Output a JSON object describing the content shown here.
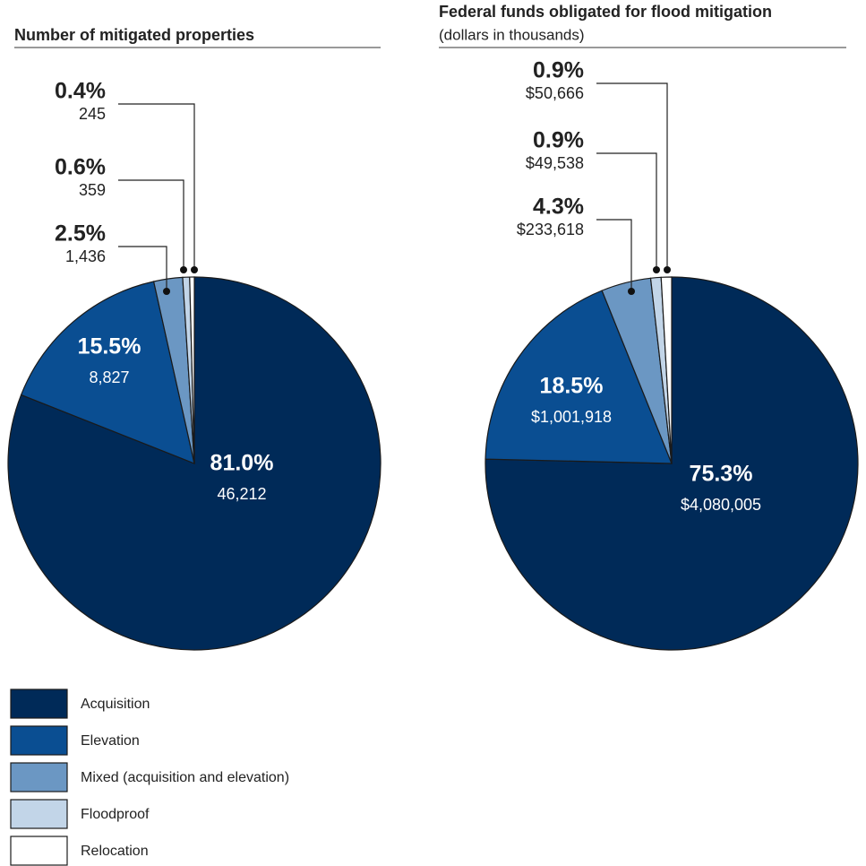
{
  "chart_data": [
    {
      "type": "pie",
      "title": "Number of mitigated properties",
      "categories": [
        "Acquisition",
        "Elevation",
        "Mixed (acquisition and elevation)",
        "Floodproof",
        "Relocation"
      ],
      "colors": [
        "#002a58",
        "#0a4e92",
        "#6b97c3",
        "#c2d5e8",
        "#ffffff"
      ],
      "values": [
        81.0,
        15.5,
        2.5,
        0.6,
        0.4
      ],
      "value_labels": [
        "81.0%",
        "15.5%",
        "2.5%",
        "0.6%",
        "0.4%"
      ],
      "amounts": [
        46212,
        8827,
        1436,
        359,
        245
      ],
      "amount_labels": [
        "46,212",
        "8,827",
        "1,436",
        "359",
        "245"
      ],
      "legend": true
    },
    {
      "type": "pie",
      "title": "Federal funds obligated for flood mitigation",
      "subtitle": "(dollars in thousands)",
      "categories": [
        "Acquisition",
        "Elevation",
        "Mixed (acquisition and elevation)",
        "Floodproof",
        "Relocation"
      ],
      "colors": [
        "#002a58",
        "#0a4e92",
        "#6b97c3",
        "#c2d5e8",
        "#ffffff"
      ],
      "values": [
        75.3,
        18.5,
        4.3,
        0.9,
        0.9
      ],
      "value_labels": [
        "75.3%",
        "18.5%",
        "4.3%",
        "0.9%",
        "0.9%"
      ],
      "amounts": [
        4080005,
        1001918,
        233618,
        49538,
        50666
      ],
      "amount_labels": [
        "$4,080,005",
        "$1,001,918",
        "$233,618",
        "$49,538",
        "$50,666"
      ],
      "legend": false
    }
  ]
}
